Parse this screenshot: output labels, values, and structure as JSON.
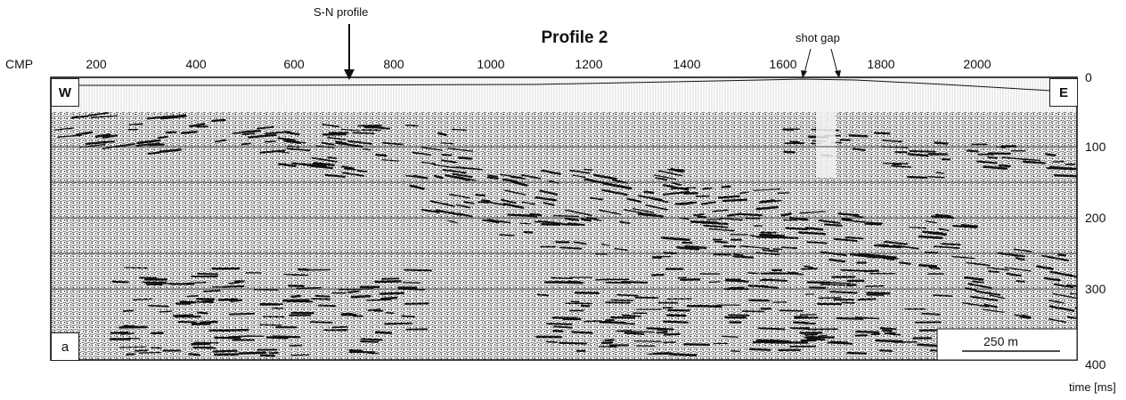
{
  "figure": {
    "title": "Profile 2",
    "cmp_label": "CMP",
    "time_label": "time [ms]",
    "west_label": "W",
    "east_label": "E",
    "panel_label": "a",
    "scale_bar_label": "250 m",
    "annotations": {
      "sn_profile": "S-N profile",
      "shot_gap": "shot gap"
    }
  },
  "axes": {
    "cmp_ticks": [
      "200",
      "400",
      "600",
      "800",
      "1000",
      "1200",
      "1400",
      "1600",
      "1800",
      "2000"
    ],
    "time_ticks": [
      "0",
      "100",
      "200",
      "300",
      "400"
    ]
  },
  "colors": {
    "ink": "#111111",
    "noise": "#3a3a3a",
    "background": "#ffffff"
  }
}
